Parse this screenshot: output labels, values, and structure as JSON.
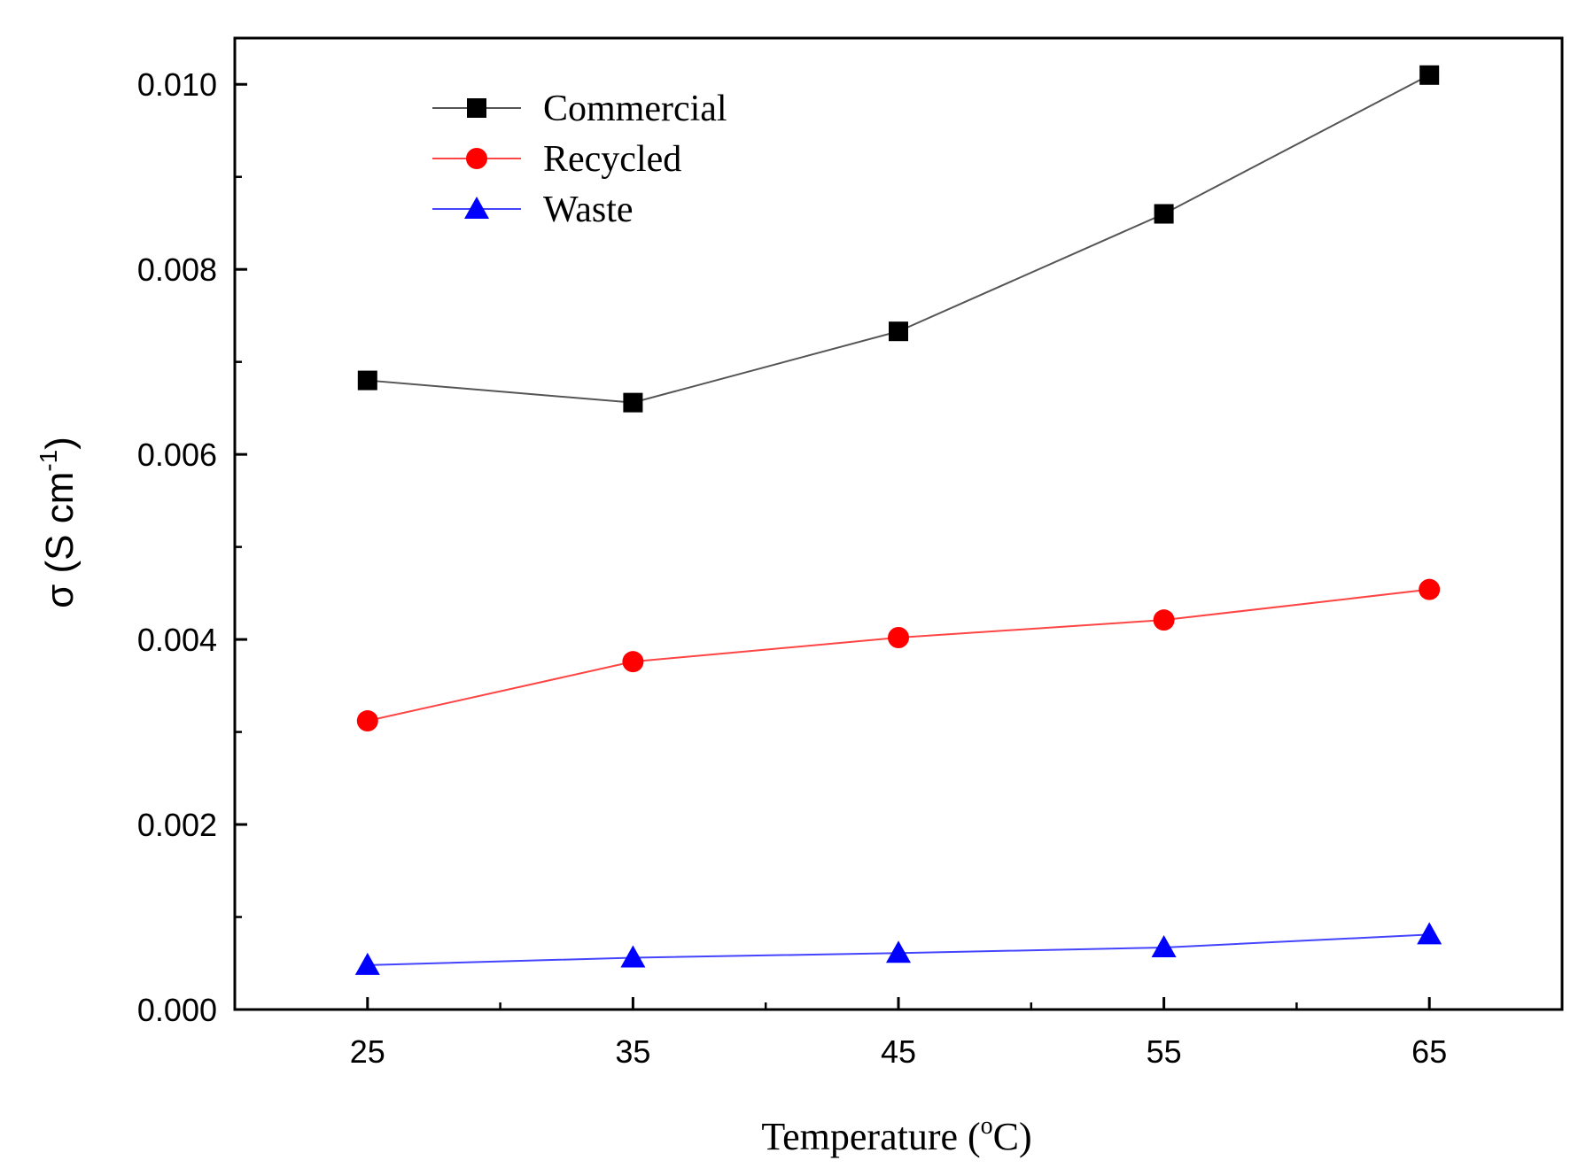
{
  "chart_data": {
    "type": "line",
    "x": [
      25,
      35,
      45,
      55,
      65
    ],
    "xlim": [
      20,
      70
    ],
    "ylim": [
      0,
      0.0105
    ],
    "xticks": [
      25,
      35,
      45,
      55,
      65
    ],
    "xtick_labels": [
      "25",
      "35",
      "45",
      "55",
      "65"
    ],
    "yticks": [
      0,
      0.002,
      0.004,
      0.006,
      0.008,
      0.01
    ],
    "ytick_labels": [
      "0.000",
      "0.002",
      "0.004",
      "0.006",
      "0.008",
      "0.010"
    ],
    "xlabel": {
      "main": "Temperature (",
      "sup": "o",
      "tail": "C)"
    },
    "ylabel": {
      "main": "σ (S cm",
      "sup": "-1",
      "tail": ")"
    },
    "grid": false,
    "legend_position": "top-left",
    "series": [
      {
        "name": "Commercial",
        "marker": "square",
        "color": "#000000",
        "line_color": "#555555",
        "values": [
          0.0068,
          0.00656,
          0.00733,
          0.0086,
          0.0101
        ]
      },
      {
        "name": "Recycled",
        "marker": "circle",
        "color": "#ff0000",
        "line_color": "#ff4444",
        "values": [
          0.00312,
          0.00376,
          0.00402,
          0.00421,
          0.00454
        ]
      },
      {
        "name": "Waste",
        "marker": "triangle",
        "color": "#0000ff",
        "line_color": "#4444ff",
        "values": [
          0.00048,
          0.00056,
          0.00061,
          0.00067,
          0.00081
        ]
      }
    ]
  }
}
